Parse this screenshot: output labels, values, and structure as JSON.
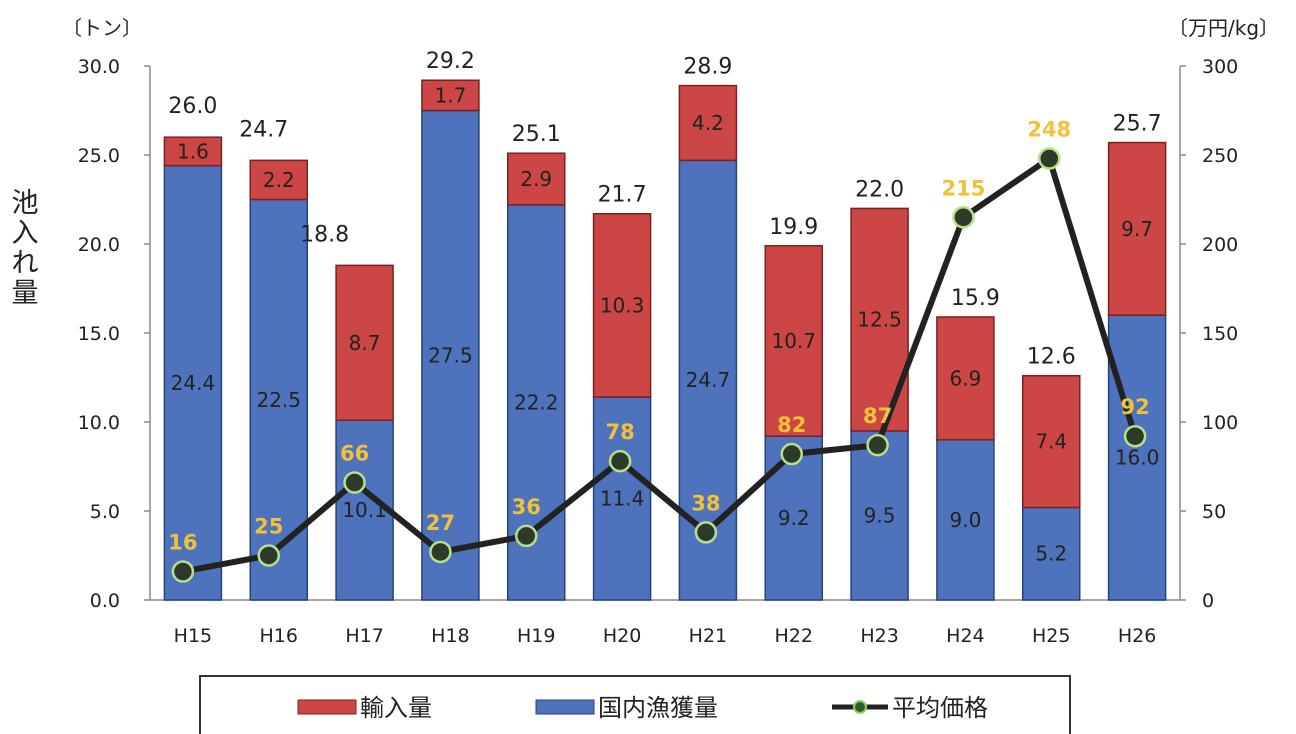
{
  "title": "",
  "chart_data": {
    "type": "bar",
    "stacked": true,
    "categories": [
      "H15",
      "H16",
      "H17",
      "H18",
      "H19",
      "H20",
      "H21",
      "H22",
      "H23",
      "H24",
      "H25",
      "H26"
    ],
    "series": [
      {
        "name": "国内漁獲量",
        "color": "#4f72bd",
        "values": [
          24.4,
          22.5,
          10.1,
          27.5,
          22.2,
          11.4,
          24.7,
          9.2,
          9.5,
          9.0,
          5.2,
          16.0
        ]
      },
      {
        "name": "輸入量",
        "color": "#cc4646",
        "values": [
          1.6,
          2.2,
          8.7,
          1.7,
          2.9,
          10.3,
          4.2,
          10.7,
          12.5,
          6.9,
          7.4,
          9.7
        ]
      }
    ],
    "totals": [
      26.0,
      24.7,
      18.8,
      29.2,
      25.1,
      21.7,
      28.9,
      19.9,
      22.0,
      15.9,
      12.6,
      25.7
    ],
    "line_series": {
      "name": "平均価格",
      "axis": "right",
      "values": [
        16,
        25,
        66,
        27,
        36,
        78,
        38,
        82,
        87,
        215,
        248,
        92
      ]
    },
    "ylabel": "池入れ量",
    "y_unit": "〔トン〕",
    "y2_unit": "〔万円/kg〕",
    "ylim": [
      0,
      30
    ],
    "y2lim": [
      0,
      300
    ],
    "yticks": [
      "0.0",
      "5.0",
      "10.0",
      "15.0",
      "20.0",
      "25.0",
      "30.0"
    ],
    "y2ticks": [
      "0",
      "50",
      "100",
      "150",
      "200",
      "250",
      "300"
    ],
    "grid": false,
    "legend_position": "bottom"
  }
}
